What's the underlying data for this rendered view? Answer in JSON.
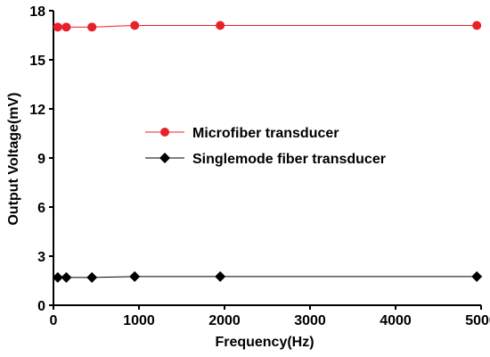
{
  "chart_data": {
    "type": "line",
    "xlabel": "Frequency(Hz)",
    "ylabel": "Output Voltage(mV)",
    "xlim": [
      0,
      5000
    ],
    "ylim": [
      0,
      18
    ],
    "xticks": [
      0,
      1000,
      2000,
      3000,
      4000,
      5000
    ],
    "yticks": [
      0,
      3,
      6,
      9,
      12,
      15,
      18
    ],
    "xtick_labels": [
      "0",
      "1000",
      "2000",
      "3000",
      "4000",
      "5000"
    ],
    "ytick_labels": [
      "0",
      "3",
      "6",
      "9",
      "12",
      "15",
      "18"
    ],
    "grid": false,
    "legend_position": "center",
    "series": [
      {
        "name": "Microfiber  transducer",
        "color": "#e8202a",
        "marker": "circle",
        "x": [
          50,
          150,
          450,
          950,
          1950,
          4950
        ],
        "y": [
          17.0,
          17.0,
          17.0,
          17.1,
          17.1,
          17.1
        ]
      },
      {
        "name": "Singlemode fiber transducer",
        "color": "#000000",
        "marker": "diamond",
        "x": [
          50,
          150,
          450,
          950,
          1950,
          4950
        ],
        "y": [
          1.7,
          1.7,
          1.7,
          1.75,
          1.75,
          1.75
        ]
      }
    ]
  }
}
